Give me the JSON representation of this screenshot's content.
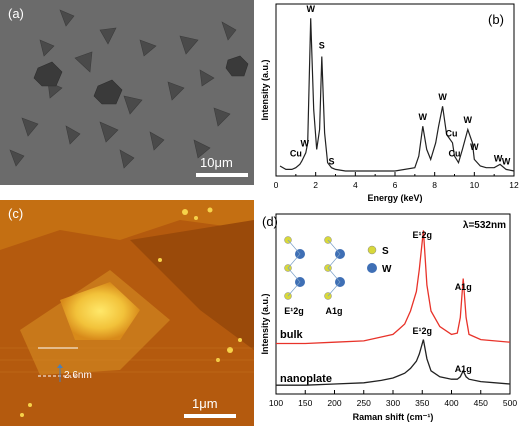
{
  "figure": {
    "panel_a": {
      "label": "(a)",
      "scale_bar": "10μm"
    },
    "panel_b": {
      "label": "(b)",
      "peak_labels": [
        "W",
        "S",
        "W",
        "Cu",
        "S",
        "W",
        "W",
        "Cu",
        "Cu",
        "W",
        "W",
        "W",
        "W"
      ]
    },
    "panel_c": {
      "label": "(c)",
      "height_label": "2.6nm",
      "scale_bar": "1μm"
    },
    "panel_d": {
      "label": "(d)",
      "wavelength": "λ=532nm",
      "inset_legend": [
        "S",
        "W"
      ],
      "inset_mode_labels": [
        "E¹2g",
        "A1g"
      ],
      "trace_labels": [
        "bulk",
        "nanoplate"
      ],
      "peak_labels": [
        "E¹2g",
        "A1g",
        "E¹2g",
        "A1g"
      ]
    }
  },
  "chart_data": [
    {
      "type": "line",
      "panel": "(b)",
      "xlabel": "Energy (keV)",
      "ylabel": "Intensity (a.u.)",
      "xlim": [
        0,
        12
      ],
      "xticks": [
        0,
        2,
        4,
        6,
        8,
        10,
        12
      ],
      "series": [
        {
          "color": "#222222",
          "x": [
            0.2,
            0.5,
            0.8,
            1.0,
            1.2,
            1.3,
            1.5,
            1.6,
            1.75,
            1.9,
            2.05,
            2.2,
            2.31,
            2.45,
            2.6,
            2.8,
            3.0,
            3.5,
            4.0,
            5.0,
            6.0,
            7.0,
            7.2,
            7.4,
            7.6,
            7.8,
            8.05,
            8.2,
            8.4,
            8.6,
            8.9,
            9.0,
            9.2,
            9.4,
            9.67,
            9.9,
            10.0,
            10.3,
            10.6,
            11.0,
            11.3,
            11.6,
            12.0
          ],
          "y": [
            0.06,
            0.04,
            0.04,
            0.05,
            0.07,
            0.09,
            0.14,
            0.2,
            0.95,
            0.4,
            0.16,
            0.28,
            0.72,
            0.26,
            0.08,
            0.05,
            0.04,
            0.03,
            0.03,
            0.03,
            0.03,
            0.05,
            0.12,
            0.3,
            0.16,
            0.1,
            0.2,
            0.3,
            0.42,
            0.25,
            0.2,
            0.12,
            0.08,
            0.16,
            0.28,
            0.2,
            0.1,
            0.06,
            0.05,
            0.05,
            0.07,
            0.04,
            0.03
          ]
        }
      ]
    },
    {
      "type": "line",
      "panel": "(d)",
      "xlabel": "Raman shift (cm⁻¹)",
      "ylabel": "Intensity (a.u.)",
      "xlim": [
        100,
        500
      ],
      "xticks": [
        100,
        150,
        200,
        250,
        300,
        350,
        400,
        450,
        500
      ],
      "series": [
        {
          "name": "bulk",
          "color": "#e8332a",
          "x": [
            100,
            150,
            200,
            250,
            280,
            300,
            310,
            320,
            330,
            340,
            345,
            352,
            358,
            365,
            380,
            400,
            410,
            415,
            420,
            425,
            430,
            450,
            500
          ],
          "y": [
            0.05,
            0.05,
            0.06,
            0.07,
            0.1,
            0.12,
            0.16,
            0.2,
            0.3,
            0.45,
            0.62,
            0.92,
            0.5,
            0.3,
            0.18,
            0.12,
            0.13,
            0.25,
            0.55,
            0.25,
            0.12,
            0.08,
            0.06
          ]
        },
        {
          "name": "nanoplate",
          "color": "#222222",
          "x": [
            100,
            150,
            200,
            250,
            280,
            300,
            310,
            320,
            330,
            340,
            345,
            352,
            358,
            365,
            380,
            400,
            410,
            415,
            420,
            425,
            430,
            450,
            500
          ],
          "y": [
            0.04,
            0.04,
            0.05,
            0.06,
            0.08,
            0.1,
            0.12,
            0.14,
            0.18,
            0.24,
            0.3,
            0.42,
            0.26,
            0.16,
            0.11,
            0.09,
            0.09,
            0.11,
            0.16,
            0.11,
            0.09,
            0.07,
            0.05
          ]
        }
      ]
    }
  ]
}
